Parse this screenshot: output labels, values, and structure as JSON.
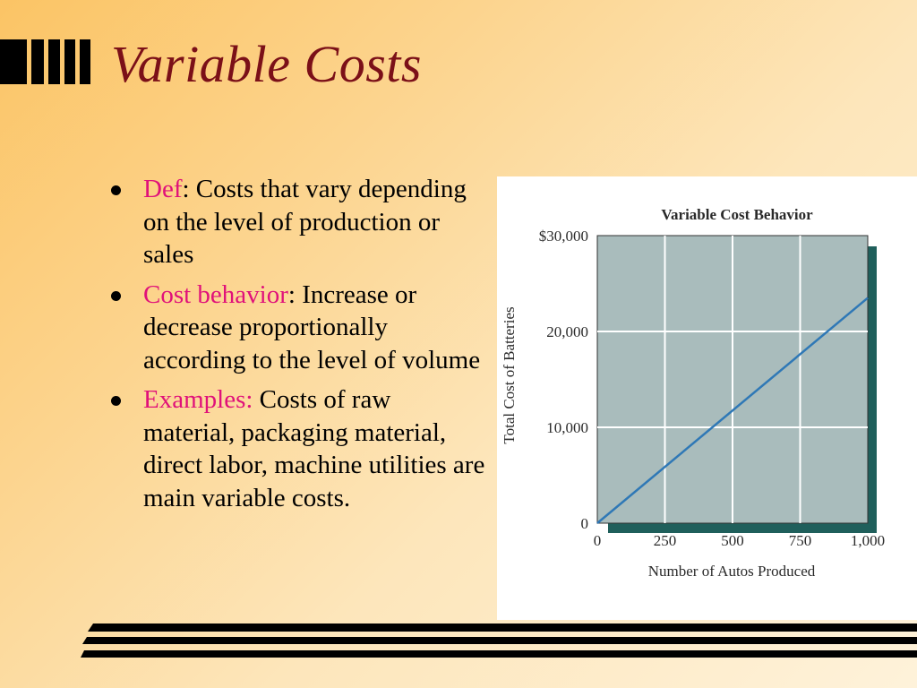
{
  "slide": {
    "title": "Variable Costs",
    "colors": {
      "title": "#7b1018",
      "term": "#e0117a",
      "text": "#000000"
    }
  },
  "bullets": [
    {
      "term": "Def",
      "text": ": Costs that vary depending on the level of production or sales"
    },
    {
      "term": "Cost behavior",
      "text": ": Increase or decrease proportionally according to the level of volume"
    },
    {
      "term": "Examples:",
      "text": " Costs of raw material, packaging material, direct labor, machine utilities are main variable costs."
    }
  ],
  "chart_data": {
    "type": "line",
    "title": "Variable Cost Behavior",
    "xlabel": "Number of Autos Produced",
    "ylabel": "Total Cost of Batteries",
    "x_ticks": [
      "0",
      "250",
      "500",
      "750",
      "1,000"
    ],
    "y_ticks": [
      "0",
      "10,000",
      "20,000",
      "$30,000"
    ],
    "xlim": [
      0,
      1000
    ],
    "ylim": [
      0,
      30000
    ],
    "grid": true,
    "series": [
      {
        "x": [
          0,
          1000
        ],
        "y": [
          0,
          23500
        ]
      }
    ],
    "colors": {
      "plot_bg": "#a9bcbc",
      "line": "#2f78b6",
      "shadow": "#1f5f5b",
      "grid": "#ffffff"
    }
  }
}
